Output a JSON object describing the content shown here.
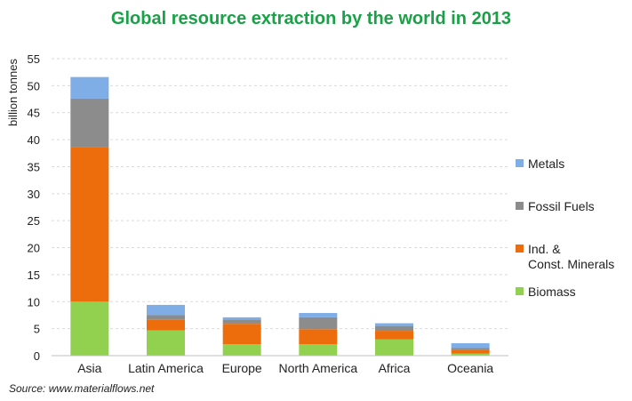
{
  "chart_data": {
    "type": "bar",
    "stacked": true,
    "title": "Global resource extraction by the world in 2013",
    "xlabel": "",
    "ylabel": "billion tonnes",
    "ylim": [
      0,
      55
    ],
    "yticks": [
      0,
      5,
      10,
      15,
      20,
      25,
      30,
      35,
      40,
      45,
      50,
      55
    ],
    "grid": true,
    "legend_position": "right",
    "categories": [
      "Asia",
      "Latin America",
      "Europe",
      "North America",
      "Africa",
      "Oceania"
    ],
    "series": [
      {
        "name": "Biomass",
        "color": "#92d050",
        "values": [
          10.0,
          4.7,
          2.1,
          2.1,
          3.0,
          0.4
        ]
      },
      {
        "name": "Ind. & Const. Minerals",
        "color": "#ed6c0c",
        "values": [
          28.6,
          2.0,
          3.8,
          2.8,
          1.6,
          0.6
        ]
      },
      {
        "name": "Fossil Fuels",
        "color": "#8c8c8c",
        "values": [
          9.0,
          0.8,
          0.8,
          2.2,
          0.9,
          0.4
        ]
      },
      {
        "name": "Metals",
        "color": "#7faee6",
        "values": [
          4.0,
          1.9,
          0.4,
          0.8,
          0.5,
          0.9
        ]
      }
    ],
    "legend_order": [
      "Metals",
      "Fossil Fuels",
      "Ind. & Const. Minerals",
      "Biomass"
    ],
    "source": "Source: www.materialflows.net"
  }
}
